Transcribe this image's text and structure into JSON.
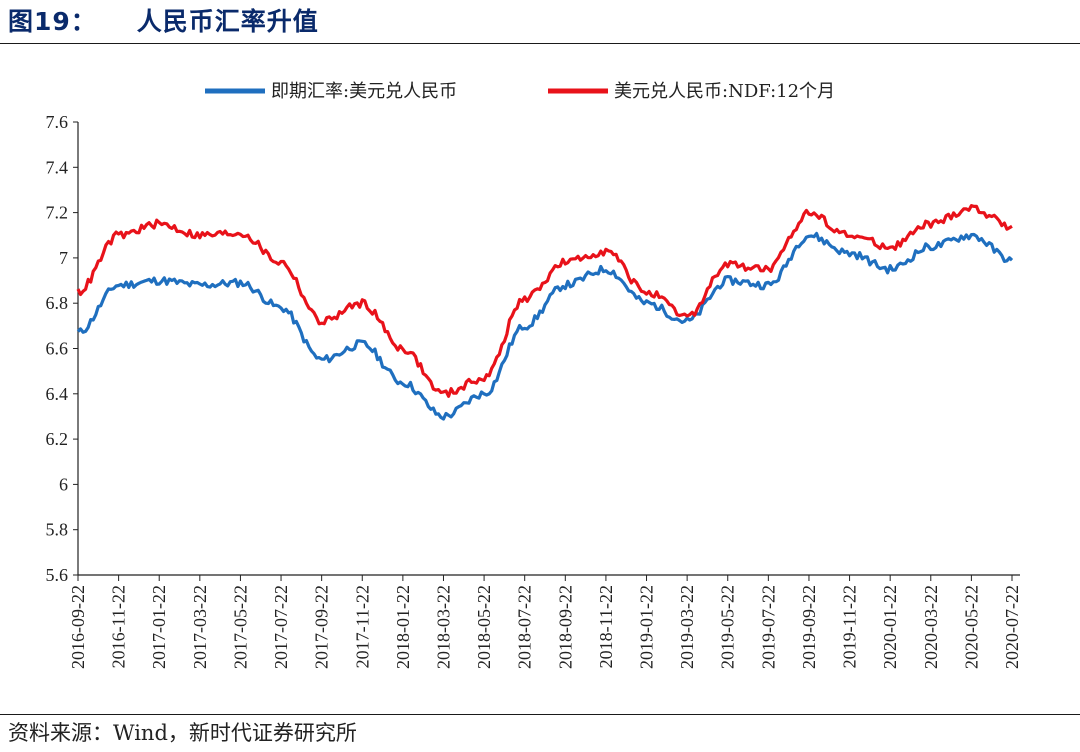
{
  "figure": {
    "number": "图19：",
    "title": "人民币汇率升值",
    "source": "资料来源：Wind，新时代证券研究所"
  },
  "chart_data": {
    "type": "line",
    "title": "人民币汇率升值",
    "xlabel": "",
    "ylabel": "",
    "ylim": [
      5.6,
      7.6
    ],
    "yticks": [
      "7.6",
      "7.4",
      "7.2",
      "7",
      "6.8",
      "6.6",
      "6.4",
      "6.2",
      "6",
      "5.8",
      "5.6"
    ],
    "ytick_values": [
      7.6,
      7.4,
      7.2,
      7.0,
      6.8,
      6.6,
      6.4,
      6.2,
      6.0,
      5.8,
      5.6
    ],
    "categories": [
      "2016-09-22",
      "2016-11-22",
      "2017-01-22",
      "2017-03-22",
      "2017-05-22",
      "2017-07-22",
      "2017-09-22",
      "2017-11-22",
      "2018-01-22",
      "2018-03-22",
      "2018-05-22",
      "2018-07-22",
      "2018-09-22",
      "2018-11-22",
      "2019-01-22",
      "2019-03-22",
      "2019-05-22",
      "2019-07-22",
      "2019-09-22",
      "2019-11-22",
      "2020-01-22",
      "2020-03-22",
      "2020-05-22",
      "2020-07-22"
    ],
    "legend_position": "top",
    "series": [
      {
        "name": "即期汇率:美元兑人民币",
        "color": "#1f6fbf",
        "values": [
          6.67,
          6.88,
          6.9,
          6.88,
          6.89,
          6.78,
          6.55,
          6.62,
          6.45,
          6.3,
          6.4,
          6.7,
          6.88,
          6.95,
          6.8,
          6.72,
          6.9,
          6.88,
          7.1,
          7.02,
          6.95,
          7.05,
          7.1,
          6.99
        ]
      },
      {
        "name": "美元兑人民币:NDF:12个月",
        "color": "#e8121a",
        "values": [
          6.85,
          7.1,
          7.15,
          7.1,
          7.11,
          6.98,
          6.72,
          6.8,
          6.6,
          6.4,
          6.47,
          6.82,
          6.98,
          7.03,
          6.85,
          6.74,
          6.97,
          6.95,
          7.2,
          7.1,
          7.05,
          7.15,
          7.22,
          7.14
        ]
      }
    ]
  }
}
